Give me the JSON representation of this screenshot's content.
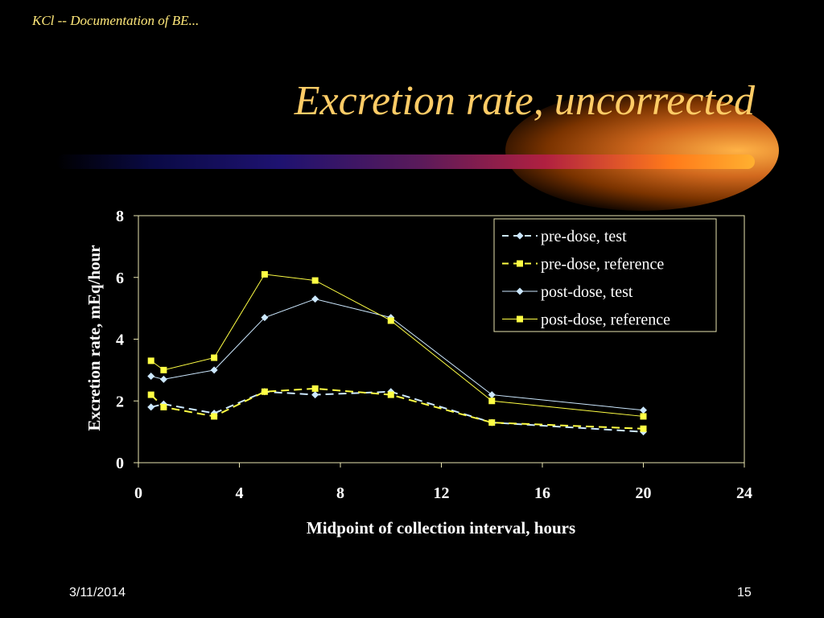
{
  "slide": {
    "header_note": "KCl -- Documentation of BE...",
    "title": "Excretion rate, uncorrected",
    "date": "3/11/2014",
    "page_number": "15"
  },
  "colors": {
    "title": "#ffcc66",
    "test": "#cce8ff",
    "reference": "#ffff44"
  },
  "chart_data": {
    "type": "line",
    "xlabel": "Midpoint of collection interval, hours",
    "ylabel": "Excretion rate, mEq/hour",
    "xlim": [
      0,
      24
    ],
    "ylim": [
      0,
      8
    ],
    "xticks": [
      0,
      4,
      8,
      12,
      16,
      20,
      24
    ],
    "yticks": [
      0,
      2,
      4,
      6,
      8
    ],
    "grid": false,
    "legend": "top-right",
    "series": [
      {
        "name": "pre-dose, test",
        "style": "dashed",
        "marker": "diamond",
        "color": "#cce8ff",
        "x": [
          0.5,
          1,
          3,
          5,
          7,
          10,
          14,
          20
        ],
        "y": [
          1.8,
          1.9,
          1.6,
          2.3,
          2.2,
          2.3,
          1.3,
          1.0
        ]
      },
      {
        "name": "pre-dose, reference",
        "style": "dashed",
        "marker": "square",
        "color": "#ffff44",
        "x": [
          0.5,
          1,
          3,
          5,
          7,
          10,
          14,
          20
        ],
        "y": [
          2.2,
          1.8,
          1.5,
          2.3,
          2.4,
          2.2,
          1.3,
          1.1
        ]
      },
      {
        "name": "post-dose, test",
        "style": "solid",
        "marker": "diamond",
        "color": "#cce8ff",
        "x": [
          0.5,
          1,
          3,
          5,
          7,
          10,
          14,
          20
        ],
        "y": [
          2.8,
          2.7,
          3.0,
          4.7,
          5.3,
          4.7,
          2.2,
          1.7
        ]
      },
      {
        "name": "post-dose, reference",
        "style": "solid",
        "marker": "square",
        "color": "#ffff44",
        "x": [
          0.5,
          1,
          3,
          5,
          7,
          10,
          14,
          20
        ],
        "y": [
          3.3,
          3.0,
          3.4,
          6.1,
          5.9,
          4.6,
          2.0,
          1.5
        ]
      }
    ]
  }
}
